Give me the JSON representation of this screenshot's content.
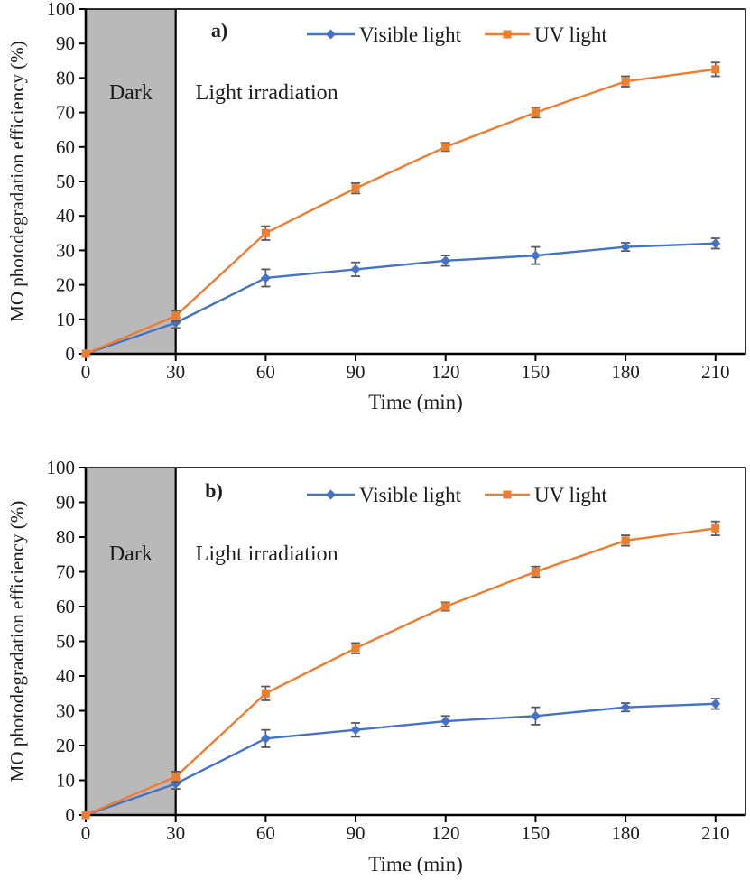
{
  "figure_background": "#ffffff",
  "chart_data": [
    {
      "type": "line",
      "panel_label": "a)",
      "xlabel": "Time (min)",
      "ylabel": "MO photodegradation efficiency (%)",
      "xlim": [
        0,
        220
      ],
      "ylim": [
        0,
        100
      ],
      "xticks": [
        0,
        30,
        60,
        90,
        120,
        150,
        180,
        210
      ],
      "yticks": [
        0,
        10,
        20,
        30,
        40,
        50,
        60,
        70,
        80,
        90,
        100
      ],
      "grid": false,
      "legend_position": "top-center-inside",
      "x": [
        0,
        30,
        60,
        90,
        120,
        150,
        180,
        210
      ],
      "series": [
        {
          "name": "Visible light",
          "color": "#4472C4",
          "marker": "diamond",
          "values": [
            0,
            9,
            22,
            24.5,
            27,
            28.5,
            31,
            32
          ],
          "errors": [
            0,
            1.5,
            2.5,
            2,
            1.5,
            2.5,
            1.2,
            1.5
          ]
        },
        {
          "name": "UV light",
          "color": "#ED7D31",
          "marker": "square",
          "values": [
            0,
            11,
            35,
            48,
            60,
            70,
            79,
            82.5
          ],
          "errors": [
            0,
            1.5,
            2,
            1.5,
            1.2,
            1.5,
            1.5,
            2
          ]
        }
      ],
      "error_bar_color": "#595959",
      "shaded_region": {
        "x_from": 0,
        "x_to": 30,
        "fill": "#b9b9b9",
        "divider_color": "#000000"
      },
      "annotations": [
        {
          "text": "Dark",
          "placement": "inside-shaded-region"
        },
        {
          "text": "Light irradiation",
          "placement": "right-of-shaded-region"
        }
      ]
    },
    {
      "type": "line",
      "panel_label": "b)",
      "xlabel": "Time (min)",
      "ylabel": "MO photodegradation efficiency (%)",
      "xlim": [
        0,
        220
      ],
      "ylim": [
        0,
        100
      ],
      "xticks": [
        0,
        30,
        60,
        90,
        120,
        150,
        180,
        210
      ],
      "yticks": [
        0,
        10,
        20,
        30,
        40,
        50,
        60,
        70,
        80,
        90,
        100
      ],
      "grid": false,
      "legend_position": "top-center-inside",
      "x": [
        0,
        30,
        60,
        90,
        120,
        150,
        180,
        210
      ],
      "series": [
        {
          "name": "Visible light",
          "color": "#4472C4",
          "marker": "diamond",
          "values": [
            0,
            9,
            22,
            24.5,
            27,
            28.5,
            31,
            32
          ],
          "errors": [
            0,
            1.5,
            2.5,
            2,
            1.5,
            2.5,
            1.2,
            1.5
          ]
        },
        {
          "name": "UV light",
          "color": "#ED7D31",
          "marker": "square",
          "values": [
            0,
            11,
            35,
            48,
            60,
            70,
            79,
            82.5
          ],
          "errors": [
            0,
            1.5,
            2,
            1.5,
            1.2,
            1.5,
            1.5,
            2
          ]
        }
      ],
      "error_bar_color": "#595959",
      "shaded_region": {
        "x_from": 0,
        "x_to": 30,
        "fill": "#b9b9b9",
        "divider_color": "#000000"
      },
      "annotations": [
        {
          "text": "Dark",
          "placement": "inside-shaded-region"
        },
        {
          "text": "Light irradiation",
          "placement": "right-of-shaded-region"
        }
      ]
    }
  ]
}
